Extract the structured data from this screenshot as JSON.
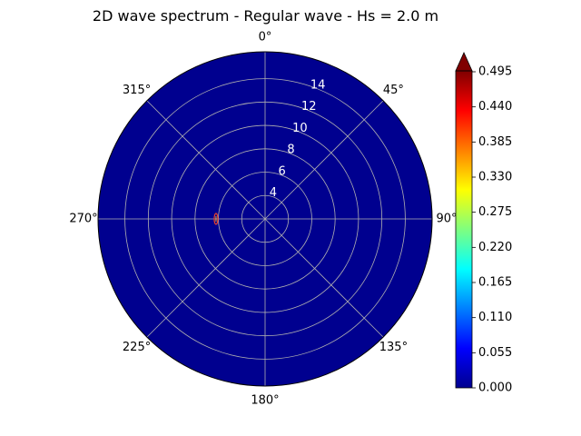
{
  "chart_data": {
    "type": "heatmap",
    "projection": "polar",
    "title": "2D wave spectrum - Regular wave - Hs = 2.0 m",
    "theta_zero": "N",
    "theta_direction": "clockwise",
    "angle_ticks": [
      {
        "deg": 0,
        "label": "0°"
      },
      {
        "deg": 45,
        "label": "45°"
      },
      {
        "deg": 90,
        "label": "90°"
      },
      {
        "deg": 135,
        "label": "135°"
      },
      {
        "deg": 180,
        "label": "180°"
      },
      {
        "deg": 225,
        "label": "225°"
      },
      {
        "deg": 270,
        "label": "270°"
      },
      {
        "deg": 315,
        "label": "315°"
      }
    ],
    "radial_ticks": [
      4,
      6,
      8,
      10,
      12,
      14
    ],
    "r_range": [
      2,
      16.3
    ],
    "grid": true,
    "background_color": "#00008f",
    "peak": {
      "direction_deg": 270,
      "period": 6.2,
      "value": 0.5,
      "color": "#e8412b"
    },
    "colorbar": {
      "ticks": [
        "0.000",
        "0.055",
        "0.110",
        "0.165",
        "0.220",
        "0.275",
        "0.330",
        "0.385",
        "0.440",
        "0.495"
      ],
      "range": [
        0,
        0.495
      ],
      "colormap": "jet",
      "extend": "max"
    }
  }
}
